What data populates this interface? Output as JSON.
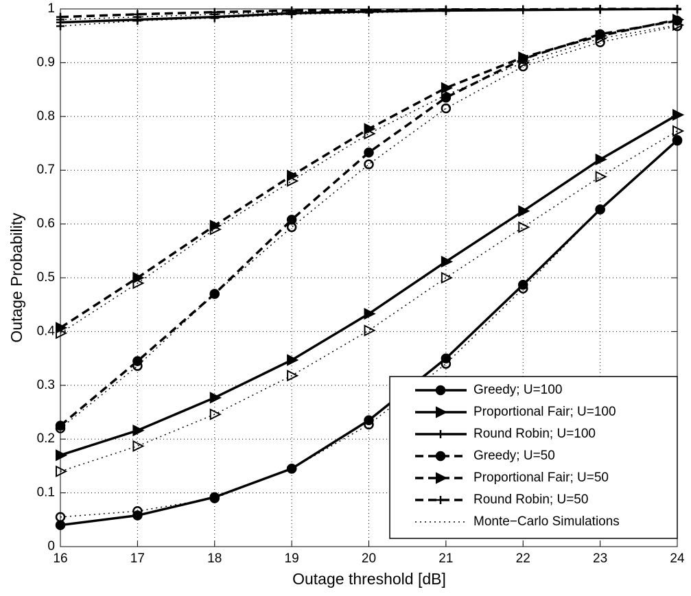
{
  "chart_data": {
    "type": "line",
    "xlabel": "Outage threshold [dB]",
    "ylabel": "Outage Probability",
    "x": [
      16,
      17,
      18,
      19,
      20,
      21,
      22,
      23,
      24
    ],
    "xlim": [
      16,
      24
    ],
    "xticks": [
      16,
      17,
      18,
      19,
      20,
      21,
      22,
      23,
      24
    ],
    "ylim": [
      0,
      1
    ],
    "yticks": [
      0,
      0.1,
      0.2,
      0.3,
      0.4,
      0.5,
      0.6,
      0.7,
      0.8,
      0.9,
      1
    ],
    "grid": true,
    "legend": "lower right",
    "simulation_label": "Monte−Carlo Simulations",
    "simulation_linestyle": "dotted",
    "series": [
      {
        "name": "Greedy; U=100",
        "color": "#000000",
        "linestyle": "solid",
        "marker": "circle",
        "values": [
          0.04,
          0.058,
          0.092,
          0.145,
          0.235,
          0.35,
          0.487,
          0.627,
          0.756
        ],
        "simulation": [
          0.055,
          0.066,
          0.09,
          0.145,
          0.227,
          0.34,
          0.48,
          0.627,
          0.755
        ]
      },
      {
        "name": "Proportional Fair; U=100",
        "color": "#000000",
        "linestyle": "solid",
        "marker": "triangle",
        "values": [
          0.17,
          0.216,
          0.277,
          0.347,
          0.433,
          0.53,
          0.624,
          0.72,
          0.803
        ],
        "simulation": [
          0.14,
          0.187,
          0.246,
          0.318,
          0.402,
          0.5,
          0.594,
          0.688,
          0.773
        ]
      },
      {
        "name": "Round Robin; U=100",
        "color": "#000000",
        "linestyle": "solid",
        "marker": "plus",
        "values": [
          0.975,
          0.98,
          0.985,
          0.992,
          0.995,
          0.997,
          0.998,
          0.999,
          1.0
        ],
        "simulation": [
          0.968,
          0.978,
          0.983,
          0.99,
          0.993,
          0.996,
          0.998,
          0.999,
          0.999
        ]
      },
      {
        "name": "Greedy; U=50",
        "color": "#000000",
        "linestyle": "dashed",
        "marker": "circle",
        "values": [
          0.225,
          0.345,
          0.47,
          0.608,
          0.733,
          0.835,
          0.907,
          0.953,
          0.978
        ],
        "simulation": [
          0.22,
          0.336,
          0.47,
          0.594,
          0.711,
          0.815,
          0.893,
          0.938,
          0.968
        ]
      },
      {
        "name": "Proportional Fair; U=50",
        "color": "#000000",
        "linestyle": "dashed",
        "marker": "triangle",
        "values": [
          0.407,
          0.5,
          0.597,
          0.69,
          0.777,
          0.853,
          0.91,
          0.95,
          0.98
        ],
        "simulation": [
          0.397,
          0.49,
          0.59,
          0.68,
          0.768,
          0.84,
          0.9,
          0.945,
          0.97
        ]
      },
      {
        "name": "Round Robin; U=50",
        "color": "#000000",
        "linestyle": "dashed",
        "marker": "plus",
        "values": [
          0.985,
          0.99,
          0.994,
          0.997,
          0.998,
          0.999,
          0.999,
          1.0,
          1.0
        ],
        "simulation": [
          0.98,
          0.985,
          0.99,
          0.995,
          0.997,
          0.998,
          0.999,
          0.999,
          1.0
        ]
      }
    ]
  }
}
